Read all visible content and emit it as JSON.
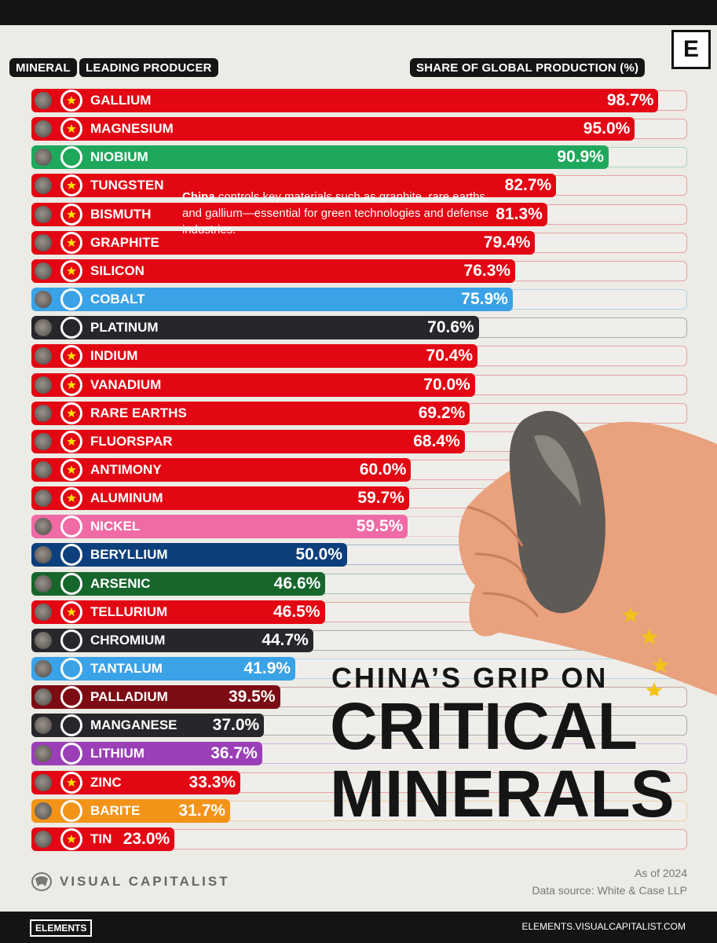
{
  "header": {
    "mineral_tag": "MINERAL",
    "producer_tag": "LEADING PRODUCER",
    "share_tag": "SHARE OF GLOBAL PRODUCTION (%)",
    "logo_letter": "E"
  },
  "annotation": {
    "bold": "China",
    "text": " controls key materials such as graphite, rare earths, and gallium—essential for green technologies and defense industries."
  },
  "title": {
    "line1": "CHINA’S GRIP ON",
    "line2": "CRITICAL",
    "line3": "MINERALS"
  },
  "footer": {
    "brand": "VISUAL CAPITALIST",
    "as_of": "As of 2024",
    "source": "Data source: White & Case LLP",
    "elements": "ELEMENTS",
    "url": "ELEMENTS.VISUALCAPITALIST.COM"
  },
  "colors": {
    "china": "#e30613",
    "brazil": "#1fa85c",
    "drc": "#3aa2e6",
    "south-africa": "#27272b",
    "indonesia": "#f06aa6",
    "usa": "#0d3f7c",
    "peru": "#17662c",
    "russia": "#7d0b14",
    "australia": "#9a3fb6",
    "india": "#f39418"
  },
  "chart_data": {
    "type": "bar",
    "orientation": "horizontal",
    "xlim": [
      0,
      100
    ],
    "unit": "%",
    "xlabel": "SHARE OF GLOBAL PRODUCTION (%)",
    "items": [
      {
        "mineral": "GALLIUM",
        "flag": "china",
        "value": 98.7,
        "label": "98.7%"
      },
      {
        "mineral": "MAGNESIUM",
        "flag": "china",
        "value": 95.0,
        "label": "95.0%"
      },
      {
        "mineral": "NIOBIUM",
        "flag": "brazil",
        "value": 90.9,
        "label": "90.9%"
      },
      {
        "mineral": "TUNGSTEN",
        "flag": "china",
        "value": 82.7,
        "label": "82.7%"
      },
      {
        "mineral": "BISMUTH",
        "flag": "china",
        "value": 81.3,
        "label": "81.3%"
      },
      {
        "mineral": "GRAPHITE",
        "flag": "china",
        "value": 79.4,
        "label": "79.4%"
      },
      {
        "mineral": "SILICON",
        "flag": "china",
        "value": 76.3,
        "label": "76.3%"
      },
      {
        "mineral": "COBALT",
        "flag": "drc",
        "value": 75.9,
        "label": "75.9%"
      },
      {
        "mineral": "PLATINUM",
        "flag": "south-africa",
        "value": 70.6,
        "label": "70.6%"
      },
      {
        "mineral": "INDIUM",
        "flag": "china",
        "value": 70.4,
        "label": "70.4%"
      },
      {
        "mineral": "VANADIUM",
        "flag": "china",
        "value": 70.0,
        "label": "70.0%"
      },
      {
        "mineral": "RARE EARTHS",
        "flag": "china",
        "value": 69.2,
        "label": "69.2%"
      },
      {
        "mineral": "FLUORSPAR",
        "flag": "china",
        "value": 68.4,
        "label": "68.4%"
      },
      {
        "mineral": "ANTIMONY",
        "flag": "china",
        "value": 60.0,
        "label": "60.0%"
      },
      {
        "mineral": "ALUMINUM",
        "flag": "china",
        "value": 59.7,
        "label": "59.7%"
      },
      {
        "mineral": "NICKEL",
        "flag": "indonesia",
        "value": 59.5,
        "label": "59.5%"
      },
      {
        "mineral": "BERYLLIUM",
        "flag": "usa",
        "value": 50.0,
        "label": "50.0%"
      },
      {
        "mineral": "ARSENIC",
        "flag": "peru",
        "value": 46.6,
        "label": "46.6%"
      },
      {
        "mineral": "TELLURIUM",
        "flag": "china",
        "value": 46.5,
        "label": "46.5%"
      },
      {
        "mineral": "CHROMIUM",
        "flag": "south-africa",
        "value": 44.7,
        "label": "44.7%"
      },
      {
        "mineral": "TANTALUM",
        "flag": "drc",
        "value": 41.9,
        "label": "41.9%"
      },
      {
        "mineral": "PALLADIUM",
        "flag": "russia",
        "value": 39.5,
        "label": "39.5%"
      },
      {
        "mineral": "MANGANESE",
        "flag": "south-africa",
        "value": 37.0,
        "label": "37.0%"
      },
      {
        "mineral": "LITHIUM",
        "flag": "australia",
        "value": 36.7,
        "label": "36.7%"
      },
      {
        "mineral": "ZINC",
        "flag": "china",
        "value": 33.3,
        "label": "33.3%"
      },
      {
        "mineral": "BARITE",
        "flag": "india",
        "value": 31.7,
        "label": "31.7%"
      },
      {
        "mineral": "TIN",
        "flag": "china",
        "value": 23.0,
        "label": "23.0%"
      }
    ]
  }
}
